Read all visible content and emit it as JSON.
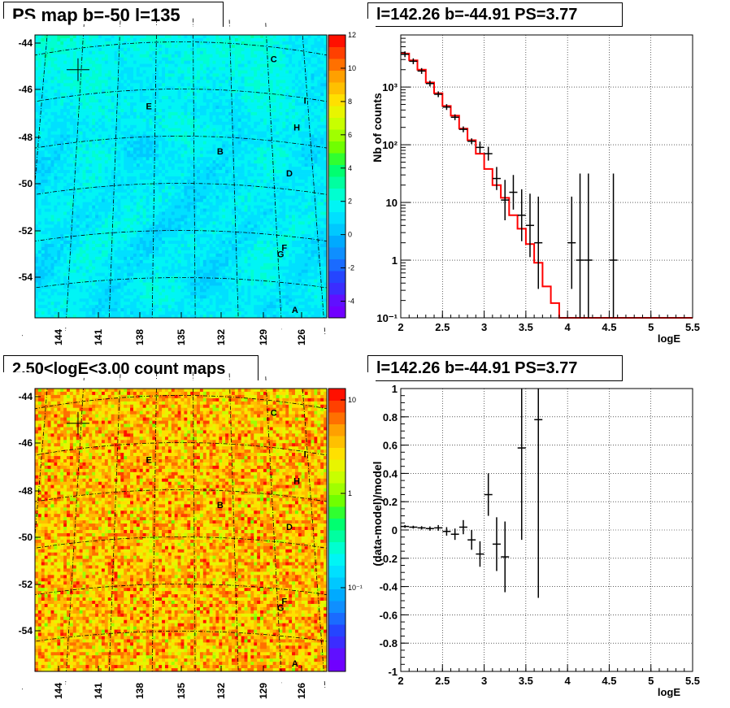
{
  "panels": {
    "map1_title": "PS map b=-50 l=135",
    "spectrum_title": "l=142.26 b=-44.91 PS=3.77",
    "map2_title": "2.50<logE<3.00 count maps",
    "residual_title": "l=142.26 b=-44.91 PS=3.77"
  },
  "chart_data": [
    {
      "type": "heatmap",
      "title": "PS map b=-50 l=135",
      "x_ticks": [
        "144",
        "141",
        "138",
        "135",
        "132",
        "129",
        "126"
      ],
      "y_ticks": [
        "-44",
        "-46",
        "-48",
        "-50",
        "-52",
        "-54"
      ],
      "colorbar_ticks": [
        "12",
        "10",
        "8",
        "6",
        "4",
        "2",
        "0",
        "-2",
        "-4"
      ],
      "colorbar_range": [
        -5,
        12
      ],
      "typical_value": 0.5,
      "markers": [
        {
          "label": "C",
          "l": 126.5,
          "b": -44.5
        },
        {
          "label": "I",
          "l": 124.2,
          "b": -46.1
        },
        {
          "label": "E",
          "l": 136.5,
          "b": -46.7
        },
        {
          "label": "H",
          "l": 125.0,
          "b": -47.3
        },
        {
          "label": "B",
          "l": 131.0,
          "b": -48.6
        },
        {
          "label": "D",
          "l": 125.8,
          "b": -49.3
        },
        {
          "label": "F",
          "l": 126.5,
          "b": -52.5
        },
        {
          "label": "G",
          "l": 126.8,
          "b": -52.8
        },
        {
          "label": "A",
          "l": 126.0,
          "b": -55.1
        }
      ],
      "cross": {
        "l": 142.26,
        "b": -44.91
      }
    },
    {
      "type": "line",
      "title": "l=142.26 b=-44.91 PS=3.77",
      "xlabel": "logE",
      "ylabel": "Nb of counts",
      "xlim": [
        2,
        5.5
      ],
      "ylim": [
        0.1,
        8000
      ],
      "yscale": "log",
      "x_ticks": [
        "2",
        "2.5",
        "3",
        "3.5",
        "4",
        "4.5",
        "5",
        "5.5"
      ],
      "y_ticks": [
        "10⁻¹",
        "1",
        "10",
        "10²",
        "10³"
      ],
      "grid": true,
      "model_step": {
        "edges": [
          2.0,
          2.1,
          2.2,
          2.3,
          2.4,
          2.5,
          2.6,
          2.7,
          2.8,
          2.9,
          3.0,
          3.1,
          3.2,
          3.3,
          3.4,
          3.5,
          3.6,
          3.7,
          3.8,
          3.9,
          4.0,
          5.5
        ],
        "values": [
          3800,
          2900,
          2000,
          1200,
          780,
          470,
          320,
          190,
          120,
          70,
          38,
          20,
          12,
          6,
          3.5,
          1.9,
          0.9,
          0.35,
          0.18,
          0.1,
          0.1
        ]
      },
      "data_points": [
        {
          "x": 2.05,
          "y": 3700
        },
        {
          "x": 2.15,
          "y": 2800
        },
        {
          "x": 2.25,
          "y": 1900
        },
        {
          "x": 2.35,
          "y": 1150
        },
        {
          "x": 2.45,
          "y": 750
        },
        {
          "x": 2.55,
          "y": 450
        },
        {
          "x": 2.65,
          "y": 300
        },
        {
          "x": 2.75,
          "y": 185
        },
        {
          "x": 2.85,
          "y": 115
        },
        {
          "x": 2.95,
          "y": 90,
          "err": 0.1
        },
        {
          "x": 3.05,
          "y": 70,
          "err": 0.12
        },
        {
          "x": 3.15,
          "y": 26,
          "err": 0.2
        },
        {
          "x": 3.25,
          "y": 11,
          "err": 0.35
        },
        {
          "x": 3.35,
          "y": 15,
          "err": 0.3
        },
        {
          "x": 3.45,
          "y": 6,
          "err": 0.45
        },
        {
          "x": 3.55,
          "y": 4,
          "err": 0.55
        },
        {
          "x": 3.65,
          "y": 2,
          "err": 0.8
        },
        {
          "x": 4.05,
          "y": 2,
          "err": 0.8
        },
        {
          "x": 4.15,
          "y": 1,
          "err": 1.5
        },
        {
          "x": 4.25,
          "y": 1,
          "err": 1.5
        },
        {
          "x": 4.55,
          "y": 1,
          "err": 1.5
        }
      ]
    },
    {
      "type": "heatmap",
      "title": "2.50<logE<3.00 count maps",
      "x_ticks": [
        "144",
        "141",
        "138",
        "135",
        "132",
        "129",
        "126"
      ],
      "y_ticks": [
        "-44",
        "-46",
        "-48",
        "-50",
        "-52",
        "-54"
      ],
      "colorbar_ticks": [
        "10",
        "1",
        "10⁻¹"
      ],
      "colorbar_scale": "log",
      "markers": "same as map 1",
      "cross": {
        "l": 142.26,
        "b": -44.91
      }
    },
    {
      "type": "scatter",
      "title": "l=142.26 b=-44.91 PS=3.77",
      "xlabel": "logE",
      "ylabel": "(data-model)/model",
      "xlim": [
        2,
        5.5
      ],
      "ylim": [
        -1,
        1
      ],
      "x_ticks": [
        "2",
        "2.5",
        "3",
        "3.5",
        "4",
        "4.5",
        "5",
        "5.5"
      ],
      "y_ticks": [
        "-1",
        "-0.8",
        "-0.6",
        "-0.4",
        "-0.2",
        "0",
        "0.2",
        "0.4",
        "0.6",
        "0.8",
        "1"
      ],
      "grid": true,
      "data_points": [
        {
          "x": 2.05,
          "y": 0.025,
          "err": 0.01
        },
        {
          "x": 2.15,
          "y": 0.02,
          "err": 0.01
        },
        {
          "x": 2.25,
          "y": 0.015,
          "err": 0.012
        },
        {
          "x": 2.35,
          "y": 0.01,
          "err": 0.015
        },
        {
          "x": 2.45,
          "y": 0.015,
          "err": 0.02
        },
        {
          "x": 2.55,
          "y": -0.01,
          "err": 0.03
        },
        {
          "x": 2.65,
          "y": -0.03,
          "err": 0.04
        },
        {
          "x": 2.75,
          "y": 0.02,
          "err": 0.05
        },
        {
          "x": 2.85,
          "y": -0.07,
          "err": 0.07
        },
        {
          "x": 2.95,
          "y": -0.17,
          "err": 0.09
        },
        {
          "x": 3.05,
          "y": 0.25,
          "err": 0.15
        },
        {
          "x": 3.15,
          "y": -0.1,
          "err": 0.19
        },
        {
          "x": 3.25,
          "y": -0.19,
          "err": 0.25
        },
        {
          "x": 3.45,
          "y": 0.58,
          "err": 0.65
        },
        {
          "x": 3.65,
          "y": 0.78,
          "err": 1.26
        }
      ]
    }
  ]
}
